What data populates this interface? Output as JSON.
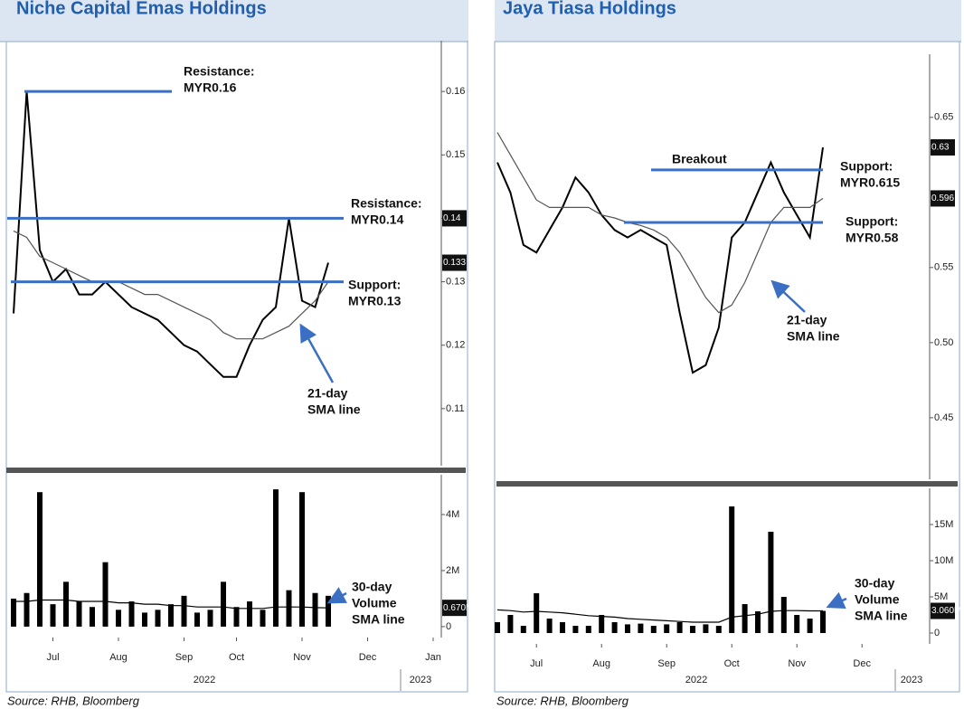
{
  "chart_data": [
    {
      "type": "line",
      "title": "Niche Capital Emas Holdings",
      "series": [
        {
          "color": "#000000",
          "values": [
            0.125,
            0.16,
            0.135,
            0.13,
            0.132,
            0.128,
            0.128,
            0.13,
            0.128,
            0.126,
            0.125,
            0.124,
            0.122,
            0.12,
            0.119,
            0.117,
            0.115,
            0.115,
            0.12,
            0.124,
            0.126,
            0.14,
            0.127,
            0.126,
            0.133
          ]
        },
        {
          "color": "#555555",
          "values": [
            0.138,
            0.137,
            0.134,
            0.133,
            0.132,
            0.131,
            0.13,
            0.13,
            0.13,
            0.129,
            0.128,
            0.128,
            0.127,
            0.126,
            0.125,
            0.124,
            0.122,
            0.121,
            0.121,
            0.121,
            0.122,
            0.123,
            0.125,
            0.127,
            0.13
          ]
        }
      ],
      "ylim": [
        0.101,
        0.168
      ],
      "yticks": [
        0.11,
        0.12,
        0.13,
        0.14,
        0.15,
        0.16
      ],
      "highlight_ticks": [
        {
          "value": 0.14,
          "label": "0.14"
        },
        {
          "value": 0.133,
          "label": "0.133"
        }
      ],
      "annotations": [
        {
          "lines": [
            "Resistance:",
            "MYR0.16"
          ],
          "value": 0.16
        },
        {
          "lines": [
            "Resistance:",
            "MYR0.14"
          ],
          "value": 0.14
        },
        {
          "lines": [
            "Support:",
            "MYR0.13"
          ],
          "value": 0.13
        },
        {
          "lines": [
            "21-day",
            "SMA line"
          ]
        }
      ]
    },
    {
      "type": "bar",
      "categories": [
        null,
        null,
        null,
        "Jul",
        null,
        null,
        null,
        null,
        "Aug",
        null,
        null,
        null,
        null,
        "Sep",
        null,
        null,
        null,
        "Oct",
        null,
        null,
        null,
        null,
        "Nov",
        null,
        null,
        null,
        null,
        "Dec",
        null,
        null,
        null,
        null,
        "Jan"
      ],
      "x_groups": [
        "2022",
        "2023"
      ],
      "series": [
        {
          "type": "bar",
          "color": "#000000",
          "values": [
            1000000,
            1200000,
            4800000,
            800000,
            1600000,
            900000,
            700000,
            2300000,
            600000,
            900000,
            500000,
            600000,
            800000,
            1100000,
            500000,
            600000,
            1600000,
            700000,
            900000,
            600000,
            4900000,
            1300000,
            4800000,
            1200000,
            1100000,
            null,
            null,
            null,
            null,
            null,
            null,
            null,
            null
          ]
        },
        {
          "type": "line",
          "color": "#000000",
          "values": [
            900000,
            900000,
            950000,
            950000,
            950000,
            900000,
            900000,
            900000,
            850000,
            850000,
            800000,
            800000,
            750000,
            750000,
            700000,
            700000,
            700000,
            650000,
            650000,
            650000,
            700000,
            700000,
            700000,
            680000,
            670000,
            null,
            null,
            null,
            null,
            null,
            null,
            null,
            null
          ]
        }
      ],
      "ylim": [
        -390000,
        5420000
      ],
      "yticks": [
        0,
        {
          "value": 2000000,
          "label": "2M"
        },
        {
          "value": 4000000,
          "label": "4M"
        }
      ],
      "highlight_ticks": [
        {
          "value": 670000,
          "label": "0.670M"
        }
      ],
      "annotations": [
        {
          "lines": [
            "30-day",
            "Volume",
            "SMA line"
          ]
        }
      ],
      "source": "Source: RHB, Bloomberg"
    },
    {
      "type": "line",
      "title": "Jaya Tiasa Holdings",
      "series": [
        {
          "color": "#000000",
          "values": [
            0.62,
            0.6,
            0.565,
            0.56,
            0.575,
            0.59,
            0.61,
            0.6,
            0.585,
            0.575,
            0.57,
            0.575,
            0.57,
            0.565,
            0.52,
            0.48,
            0.485,
            0.51,
            0.57,
            0.58,
            0.6,
            0.62,
            0.6,
            0.585,
            0.57,
            0.63
          ]
        },
        {
          "color": "#555555",
          "values": [
            0.64,
            0.625,
            0.61,
            0.595,
            0.59,
            0.59,
            0.59,
            0.59,
            0.585,
            0.583,
            0.58,
            0.578,
            0.575,
            0.57,
            0.56,
            0.545,
            0.53,
            0.52,
            0.525,
            0.54,
            0.56,
            0.58,
            0.59,
            0.59,
            0.59,
            0.596
          ]
        }
      ],
      "ylim": [
        0.409,
        0.692
      ],
      "yticks": [
        0.45,
        {
          "value": 0.5,
          "label": "0.50"
        },
        0.55,
        0.65
      ],
      "highlight_ticks": [
        {
          "value": 0.63,
          "label": "0.63"
        },
        {
          "value": 0.596,
          "label": "0.596"
        }
      ],
      "annotations": [
        {
          "lines": [
            "Breakout"
          ]
        },
        {
          "lines": [
            "Support:",
            "MYR0.615"
          ],
          "value": 0.615
        },
        {
          "lines": [
            "Support:",
            "MYR0.58"
          ],
          "value": 0.58
        },
        {
          "lines": [
            "21-day",
            "SMA line"
          ]
        }
      ]
    },
    {
      "type": "bar",
      "categories": [
        null,
        null,
        null,
        "Jul",
        null,
        null,
        null,
        null,
        "Aug",
        null,
        null,
        null,
        null,
        "Sep",
        null,
        null,
        null,
        null,
        "Oct",
        null,
        null,
        null,
        null,
        "Nov",
        null,
        null,
        null,
        null,
        "Dec"
      ],
      "x_groups": [
        "2022",
        "2023"
      ],
      "series": [
        {
          "type": "bar",
          "color": "#000000",
          "values": [
            1500000,
            2500000,
            1000000,
            5500000,
            2000000,
            1500000,
            1000000,
            1000000,
            2500000,
            1500000,
            1200000,
            1300000,
            1000000,
            1200000,
            1500000,
            1000000,
            1200000,
            1000000,
            17500000,
            4000000,
            3000000,
            14000000,
            5000000,
            2500000,
            2000000,
            3060000,
            null,
            null,
            null
          ]
        },
        {
          "type": "line",
          "color": "#000000",
          "values": [
            3200000,
            3100000,
            2900000,
            3000000,
            2900000,
            2800000,
            2600000,
            2400000,
            2300000,
            2200000,
            2000000,
            1900000,
            1800000,
            1700000,
            1600000,
            1500000,
            1500000,
            1500000,
            2200000,
            2400000,
            2600000,
            3000000,
            3100000,
            3100000,
            3060000,
            3060000,
            null,
            null,
            null
          ]
        }
      ],
      "ylim": [
        -1500000,
        20000000
      ],
      "yticks": [
        0,
        {
          "value": 5000000,
          "label": "5M"
        },
        {
          "value": 10000000,
          "label": "10M"
        },
        {
          "value": 15000000,
          "label": "15M"
        }
      ],
      "highlight_ticks": [
        {
          "value": 3060000,
          "label": "3.060M"
        }
      ],
      "annotations": [
        {
          "lines": [
            "30-day",
            "Volume",
            "SMA line"
          ]
        }
      ],
      "source": "Source: RHB, Bloomberg"
    }
  ]
}
